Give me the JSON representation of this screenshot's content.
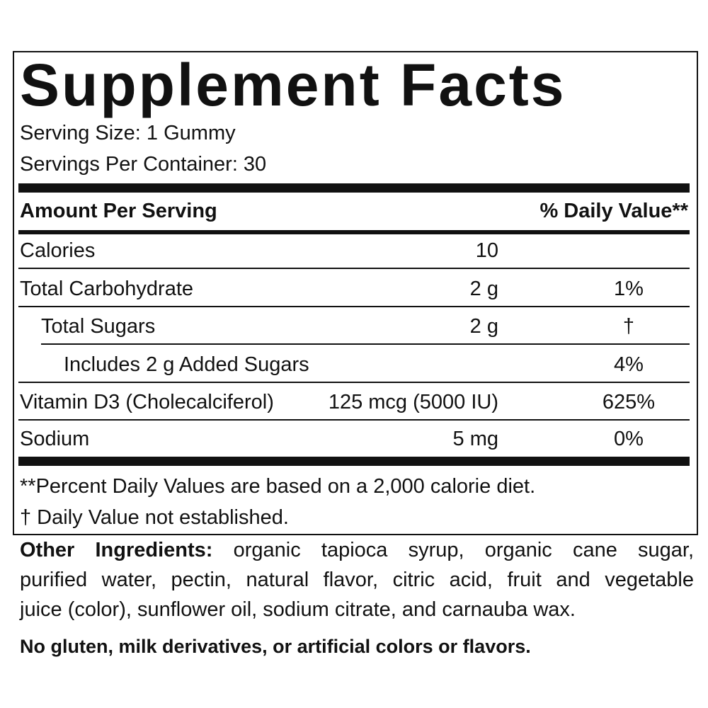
{
  "title": "Supplement Facts",
  "serving_size": "Serving Size: 1 Gummy",
  "servings_per_container": "Servings Per Container: 30",
  "table": {
    "header": {
      "amount": "Amount Per Serving",
      "daily_value": "% Daily Value**"
    },
    "rows": [
      {
        "name": "Calories",
        "amount": "10"
      },
      {
        "name": "Total Carbohydrate",
        "amount": "2 g",
        "daily_value": "1%"
      },
      {
        "name": "Total Sugars",
        "amount": "2 g",
        "daily_value": "†"
      },
      {
        "name": "Includes 2 g Added Sugars",
        "daily_value": "4%"
      },
      {
        "name": "Vitamin D3 (Cholecalciferol)",
        "amount": "125 mcg (5000 IU)",
        "daily_value": "625%"
      },
      {
        "name": "Sodium",
        "amount": "5 mg",
        "daily_value": "0%"
      }
    ]
  },
  "footnotes": [
    "**Percent Daily Values are based on a 2,000 calorie diet.",
    "† Daily Value not established."
  ],
  "other_ingredients": {
    "label": "Other Ingredients:",
    "lines": [
      "organic tapioca syrup, organic cane sugar,",
      "purified water, pectin, natural flavor, citric acid, fruit and vegetable",
      "juice (color),  sunflower oil, sodium citrate, and carnauba wax."
    ]
  },
  "statement": "No gluten, milk derivatives, or artificial colors or flavors."
}
